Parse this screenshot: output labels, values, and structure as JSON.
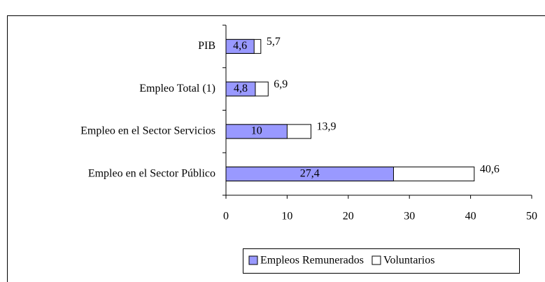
{
  "chart_data": {
    "type": "bar",
    "orientation": "horizontal",
    "overlap": true,
    "categories": [
      "PIB",
      "Empleo Total (1)",
      "Empleo en el Sector Servicios",
      "Empleo en el Sector Público"
    ],
    "series": [
      {
        "name": "Voluntarios",
        "color": "#ffffff",
        "values": [
          5.7,
          6.9,
          13.9,
          40.6
        ],
        "value_labels": [
          "5,7",
          "6,9",
          "13,9",
          "40,6"
        ]
      },
      {
        "name": "Empleos Remunerados",
        "color": "#9999ff",
        "values": [
          4.6,
          4.8,
          10,
          27.4
        ],
        "value_labels": [
          "4,6",
          "4,8",
          "10",
          "27,4"
        ]
      }
    ],
    "xlim": [
      0,
      50
    ],
    "xticks": [
      0,
      10,
      20,
      30,
      40,
      50
    ],
    "legend": "bottom"
  }
}
